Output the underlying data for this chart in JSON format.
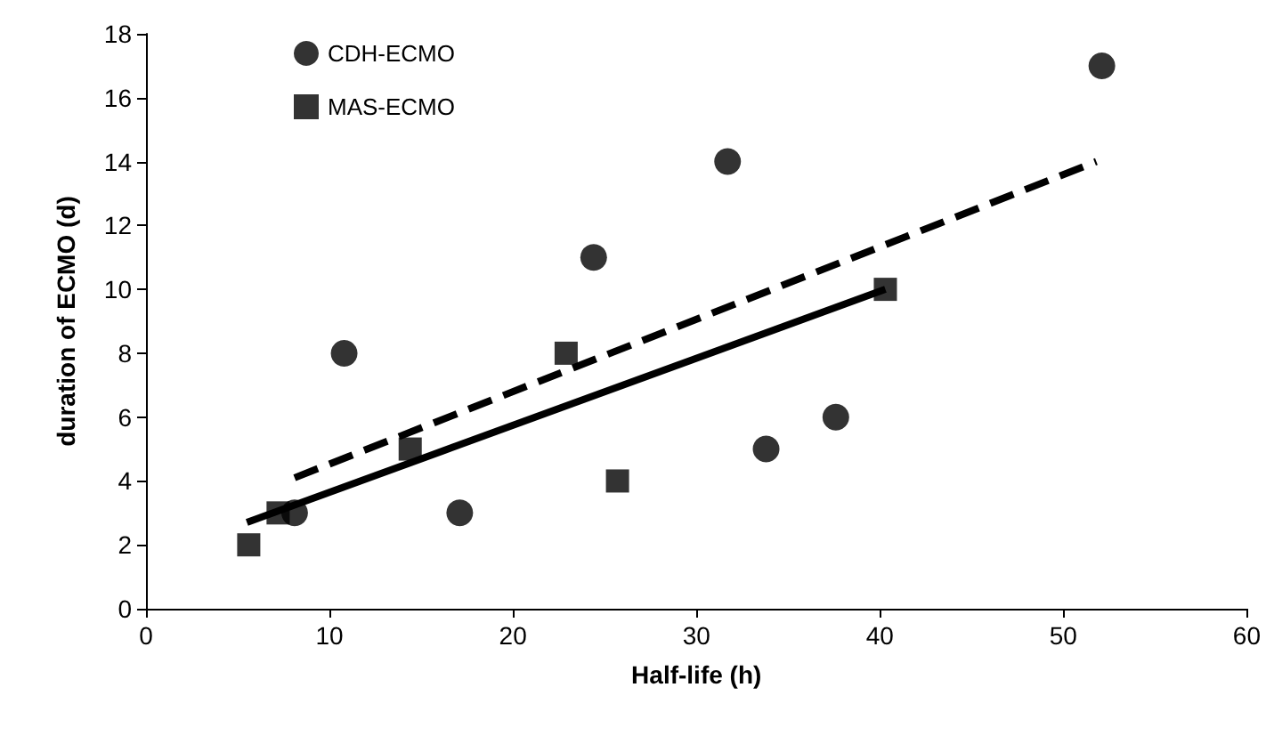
{
  "chart_data": {
    "type": "scatter",
    "xlabel": "Half-life (h)",
    "ylabel": "duration of ECMO (d)",
    "xlim": [
      0,
      60
    ],
    "xticks": [
      0,
      10,
      20,
      30,
      40,
      50,
      60
    ],
    "ylim": [
      0,
      18
    ],
    "yticks": [
      0,
      2,
      4,
      6,
      8,
      10,
      12,
      14,
      16,
      18
    ],
    "grid": false,
    "legend": "top left",
    "series": [
      {
        "name": "CDH-ECMO",
        "color": "#000000",
        "marker": "circle",
        "x": [
          8.1,
          10.8,
          17.1,
          24.4,
          31.7,
          33.8,
          37.6,
          52.1
        ],
        "values": [
          3,
          8,
          3,
          11,
          14,
          5,
          6,
          17
        ]
      },
      {
        "name": "MAS-ECMO",
        "color": "#000000",
        "marker": "square",
        "x": [
          5.6,
          7.2,
          14.4,
          22.9,
          25.7,
          40.3
        ],
        "values": [
          2,
          3,
          5,
          8,
          4,
          10
        ]
      },
      {
        "type": "line",
        "color": "#000000",
        "line_style": "dashed",
        "marker": "none",
        "x": [
          8.1,
          51.8
        ],
        "values": [
          4.1,
          14.0
        ]
      },
      {
        "type": "line",
        "color": "#000000",
        "line_style": "solid",
        "marker": "none",
        "x": [
          5.5,
          40.3
        ],
        "values": [
          2.7,
          10.0
        ]
      }
    ]
  }
}
